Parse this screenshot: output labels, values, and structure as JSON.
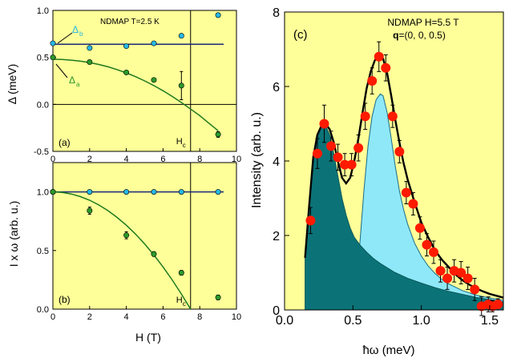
{
  "chart_data": [
    {
      "panel": "(a)",
      "type": "scatter",
      "title": "NDMAP T=2.5 K",
      "xlabel": "",
      "ylabel": "Δ (meV)",
      "xlim": [
        0,
        10
      ],
      "ylim": [
        -0.5,
        1.0
      ],
      "xticks": [
        "0",
        "2",
        "4",
        "6",
        "8",
        "10"
      ],
      "yticks": [
        "-0.5",
        "0.0",
        "0.5",
        "1.0"
      ],
      "marker_label": "H",
      "marker_sub": "c",
      "marker_x": 7.5,
      "series": [
        {
          "name": "Δ",
          "sub": "b",
          "color": "#26b8e6",
          "x": [
            0,
            2,
            4,
            5.5,
            7,
            9
          ],
          "y": [
            0.65,
            0.6,
            0.62,
            0.65,
            0.73,
            0.95
          ],
          "fit": {
            "x": [
              0,
              9.3
            ],
            "y": [
              0.64,
              0.64
            ]
          }
        },
        {
          "name": "Δ",
          "sub": "a",
          "color": "#2a9a2a",
          "x": [
            0,
            2,
            4,
            5.5,
            7,
            9
          ],
          "y": [
            0.5,
            0.45,
            0.34,
            0.26,
            0.2,
            -0.32
          ],
          "yerr": [
            0,
            0,
            0,
            0,
            0.15,
            0.03
          ],
          "fit": {
            "x": [
              0,
              0.5,
              1,
              1.5,
              2,
              2.5,
              3,
              3.5,
              4,
              4.5,
              5,
              5.5,
              6,
              6.5,
              7,
              7.5,
              8,
              8.5,
              9
            ],
            "y": [
              0.48,
              0.478,
              0.471,
              0.46,
              0.445,
              0.425,
              0.4,
              0.37,
              0.335,
              0.295,
              0.25,
              0.2,
              0.145,
              0.085,
              0.02,
              -0.05,
              -0.12,
              -0.2,
              -0.28
            ]
          }
        }
      ]
    },
    {
      "panel": "(b)",
      "type": "scatter",
      "title": "",
      "xlabel": "H (T)",
      "ylabel": "I x ω (arb. u.)",
      "xlim": [
        0,
        10
      ],
      "ylim": [
        0.0,
        1.25
      ],
      "xticks": [
        "0",
        "2",
        "4",
        "6",
        "8",
        "10"
      ],
      "yticks": [
        "0.0",
        "0.5",
        "1.0"
      ],
      "marker_label": "H",
      "marker_sub": "c",
      "marker_x": 7.5,
      "series": [
        {
          "name": "",
          "color": "#26b8e6",
          "x": [
            0,
            2,
            4,
            5.5,
            7,
            9
          ],
          "y": [
            1.0,
            1.0,
            1.0,
            1.0,
            1.0,
            1.0
          ],
          "fit": {
            "x": [
              0,
              9.3
            ],
            "y": [
              1.0,
              1.0
            ]
          }
        },
        {
          "name": "",
          "color": "#2a9a2a",
          "x": [
            0,
            2,
            4,
            5.5,
            7,
            9
          ],
          "y": [
            1.0,
            0.84,
            0.63,
            0.47,
            0.31,
            0.1
          ],
          "yerr": [
            0,
            0.03,
            0.03,
            0.02,
            0.02,
            0.02
          ],
          "fit": {
            "x": [
              0,
              0.5,
              1,
              1.5,
              2,
              2.5,
              3,
              3.5,
              4,
              4.5,
              5,
              5.5,
              6,
              6.5,
              7,
              7.5
            ],
            "y": [
              1.0,
              0.996,
              0.982,
              0.96,
              0.929,
              0.889,
              0.84,
              0.782,
              0.716,
              0.64,
              0.556,
              0.462,
              0.36,
              0.249,
              0.129,
              0.0
            ]
          }
        }
      ]
    },
    {
      "panel": "(c)",
      "type": "area",
      "title": "NDMAP H=5.5 T",
      "subtitle_bold": "q",
      "subtitle_rest": "=(0, 0, 0.5)",
      "xlabel": "ħω  (meV)",
      "ylabel": "Intensity (arb. u.)",
      "xlim": [
        0.0,
        1.6
      ],
      "ylim": [
        0,
        8
      ],
      "xticks": [
        "0.0",
        "0.5",
        "1.0",
        "1.5"
      ],
      "yticks": [
        "0",
        "2",
        "4",
        "6",
        "8"
      ],
      "points": {
        "x": [
          0.19,
          0.24,
          0.29,
          0.34,
          0.39,
          0.44,
          0.49,
          0.54,
          0.59,
          0.64,
          0.69,
          0.74,
          0.79,
          0.84,
          0.89,
          0.94,
          0.99,
          1.04,
          1.09,
          1.14,
          1.19,
          1.24,
          1.29,
          1.34,
          1.39,
          1.44,
          1.49,
          1.52,
          1.56
        ],
        "y": [
          2.4,
          4.2,
          5.0,
          4.4,
          4.1,
          3.9,
          3.9,
          4.35,
          5.2,
          6.15,
          6.8,
          6.5,
          5.2,
          4.25,
          3.15,
          2.85,
          2.2,
          1.75,
          1.55,
          1.05,
          0.85,
          1.05,
          1.0,
          0.85,
          0.55,
          0.1,
          0.15,
          0.1,
          0.15
        ],
        "yerr": [
          0.35,
          0.4,
          0.5,
          0.4,
          0.35,
          0.3,
          0.3,
          0.35,
          0.35,
          0.35,
          0.4,
          0.35,
          0.3,
          0.3,
          0.3,
          0.3,
          0.3,
          0.3,
          0.3,
          0.3,
          0.3,
          0.3,
          0.3,
          0.3,
          0.3,
          0.25,
          0.2,
          0.15,
          0.15
        ],
        "color": "#ff1a00"
      },
      "fit_total": {
        "x": [
          0.15,
          0.18,
          0.21,
          0.24,
          0.27,
          0.3,
          0.33,
          0.36,
          0.39,
          0.42,
          0.45,
          0.48,
          0.51,
          0.54,
          0.57,
          0.6,
          0.63,
          0.66,
          0.69,
          0.72,
          0.75,
          0.78,
          0.81,
          0.84,
          0.87,
          0.9,
          0.95,
          1.0,
          1.05,
          1.1,
          1.15,
          1.2,
          1.25,
          1.3,
          1.35,
          1.4,
          1.45,
          1.5,
          1.55,
          1.6
        ],
        "y": [
          1.4,
          2.8,
          4.1,
          4.7,
          4.95,
          5.0,
          4.85,
          4.5,
          4.0,
          3.55,
          3.4,
          3.55,
          4.0,
          4.6,
          5.3,
          5.95,
          6.4,
          6.7,
          6.85,
          6.75,
          6.35,
          5.75,
          5.1,
          4.5,
          3.95,
          3.5,
          2.9,
          2.35,
          1.95,
          1.6,
          1.35,
          1.15,
          0.95,
          0.8,
          0.68,
          0.58,
          0.5,
          0.43,
          0.38,
          0.33
        ]
      },
      "area_low": {
        "color": "#0b7377",
        "x": [
          0.15,
          0.18,
          0.21,
          0.24,
          0.27,
          0.3,
          0.33,
          0.36,
          0.39,
          0.42,
          0.45,
          0.48,
          0.51,
          0.55,
          0.6,
          0.65,
          0.7,
          0.8,
          0.9,
          1.0,
          1.1,
          1.2,
          1.3,
          1.4,
          1.5,
          1.6
        ],
        "y": [
          1.4,
          2.8,
          4.1,
          4.7,
          4.95,
          4.95,
          4.7,
          4.2,
          3.6,
          3.0,
          2.55,
          2.2,
          1.95,
          1.75,
          1.55,
          1.38,
          1.25,
          1.02,
          0.85,
          0.72,
          0.6,
          0.5,
          0.42,
          0.34,
          0.28,
          0.22
        ]
      },
      "area_high": {
        "color": "#8fe8f8",
        "x": [
          0.55,
          0.58,
          0.61,
          0.64,
          0.67,
          0.7,
          0.72,
          0.75,
          0.78,
          0.81,
          0.84,
          0.87,
          0.9,
          0.95,
          1.0,
          1.05,
          1.1,
          1.15,
          1.2,
          1.3,
          1.4,
          1.5,
          1.6
        ],
        "y": [
          1.75,
          3.2,
          4.4,
          5.2,
          5.65,
          5.8,
          5.75,
          5.3,
          4.6,
          3.85,
          3.2,
          2.7,
          2.3,
          1.8,
          1.45,
          1.18,
          0.98,
          0.82,
          0.7,
          0.52,
          0.4,
          0.32,
          0.26
        ]
      }
    }
  ]
}
